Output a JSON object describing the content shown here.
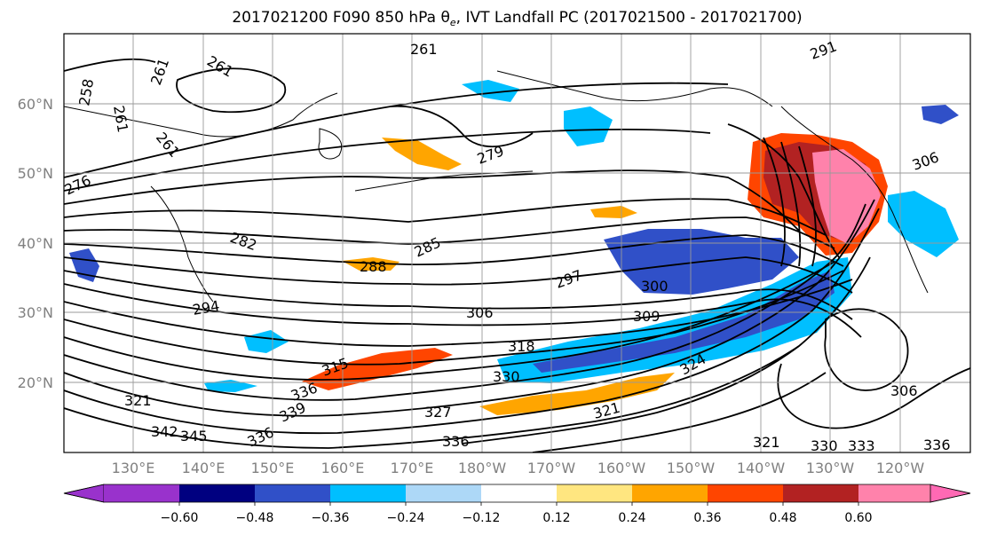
{
  "title": {
    "prefix": "2017021200 F090 850 hPa θ",
    "sub": "e",
    "suffix": ", IVT Landfall PC (2017021500 - 2017021700)"
  },
  "map": {
    "lat_labels": [
      "60°N",
      "50°N",
      "40°N",
      "30°N",
      "20°N"
    ],
    "lon_labels": [
      "130°E",
      "140°E",
      "150°E",
      "160°E",
      "170°E",
      "180°W",
      "170°W",
      "160°W",
      "150°W",
      "140°W",
      "130°W",
      "120°W"
    ],
    "contour_labels": [
      "261",
      "261",
      "261",
      "261",
      "258",
      "261",
      "276",
      "282",
      "285",
      "288",
      "279",
      "297",
      "294",
      "306",
      "309",
      "300",
      "318",
      "315",
      "330",
      "336",
      "321",
      "342",
      "345",
      "339",
      "336",
      "327",
      "321",
      "324",
      "321",
      "336",
      "306",
      "336",
      "291",
      "306",
      "333",
      "330"
    ]
  },
  "colorbar": {
    "ticks": [
      "−0.60",
      "−0.48",
      "−0.36",
      "−0.24",
      "−0.12",
      "0.12",
      "0.24",
      "0.36",
      "0.48",
      "0.60"
    ],
    "colors": [
      "#9932cc",
      "#000080",
      "#3050c8",
      "#00bfff",
      "#add8f7",
      "#ffffff",
      "#ffe680",
      "#ffa500",
      "#ff4500",
      "#b22222",
      "#ff82ab",
      "#ff69b4"
    ],
    "extend_min_color": "#9932cc",
    "extend_max_color": "#ff69b4"
  },
  "colors": {
    "grid": "#999999",
    "contour": "#000000",
    "axis_label": "#808080"
  }
}
